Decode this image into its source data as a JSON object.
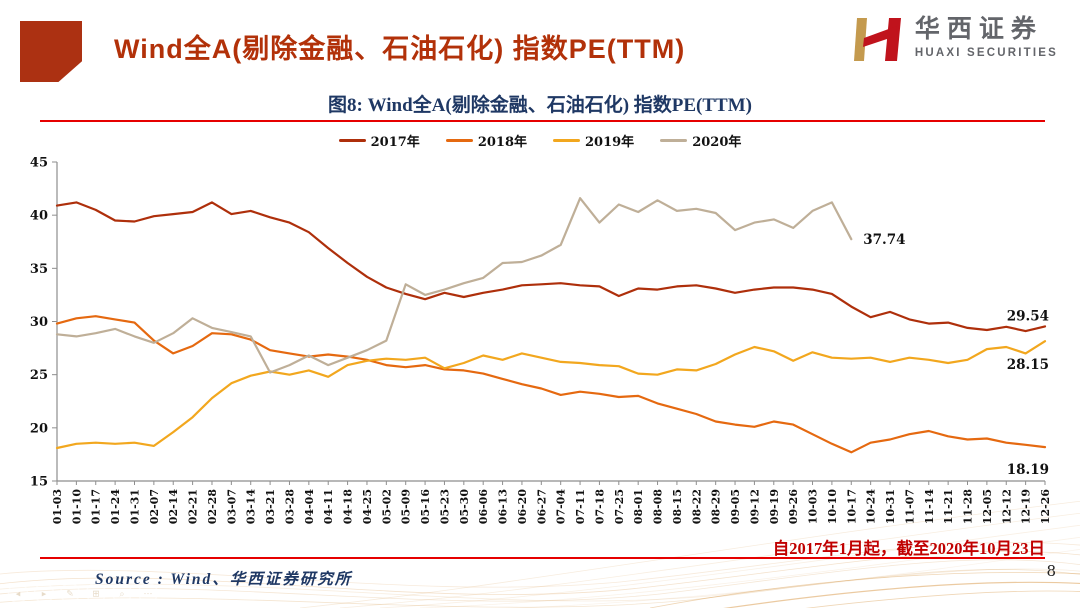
{
  "header": {
    "title": "Wind全A(剔除金融、石油石化) 指数PE(TTM)",
    "logo": {
      "cn": "华西证券",
      "en": "HUAXI SECURITIES"
    }
  },
  "figure": {
    "caption": "图8: Wind全A(剔除金融、石油石化) 指数PE(TTM)",
    "note": "自2017年1月起，截至2020年10月23日",
    "source": "Source : Wind、华西证券研究所",
    "page_number": "8"
  },
  "colors": {
    "brand_dark_red": "#B23109",
    "rule_red": "#E60000",
    "note_red": "#C00000",
    "caption_navy": "#1F3864",
    "axis_gray": "#8E8E8E"
  },
  "footer_ghost_toolbar": {
    "icons": [
      "back-icon",
      "play-icon",
      "pencil-icon",
      "print-icon",
      "search-icon",
      "more-icon"
    ],
    "glyphs": [
      "◂",
      "▸",
      "✎",
      "⊞",
      "⌕",
      "⋯"
    ]
  },
  "chart_data": {
    "type": "line",
    "title": "图8: Wind全A(剔除金融、石油石化) 指数PE(TTM)",
    "xlabel": "",
    "ylabel": "",
    "ylim": [
      15,
      45
    ],
    "yticks": [
      15,
      20,
      25,
      30,
      35,
      40,
      45
    ],
    "grid": false,
    "legend_position": "top",
    "x_labels": [
      "01-03",
      "01-10",
      "01-17",
      "01-24",
      "01-31",
      "02-07",
      "02-14",
      "02-21",
      "02-28",
      "03-07",
      "03-14",
      "03-21",
      "03-28",
      "04-04",
      "04-11",
      "04-18",
      "04-25",
      "05-02",
      "05-09",
      "05-16",
      "05-23",
      "05-30",
      "06-06",
      "06-13",
      "06-20",
      "06-27",
      "07-04",
      "07-11",
      "07-18",
      "07-25",
      "08-01",
      "08-08",
      "08-15",
      "08-22",
      "08-29",
      "09-05",
      "09-12",
      "09-19",
      "09-26",
      "10-03",
      "10-10",
      "10-17",
      "10-24",
      "10-31",
      "11-07",
      "11-14",
      "11-21",
      "11-28",
      "12-05",
      "12-12",
      "12-19",
      "12-26"
    ],
    "series": [
      {
        "name": "2017年",
        "color": "#AE2F0B",
        "end_label": "29.54",
        "label_anchor": "end",
        "label_offset": [
          4,
          -6
        ],
        "values": [
          40.9,
          41.2,
          40.5,
          39.5,
          39.4,
          39.9,
          40.1,
          40.3,
          41.2,
          40.1,
          40.4,
          39.8,
          39.3,
          38.4,
          36.9,
          35.5,
          34.2,
          33.2,
          32.6,
          32.1,
          32.7,
          32.3,
          32.7,
          33.0,
          33.4,
          33.5,
          33.6,
          33.4,
          33.3,
          32.4,
          33.1,
          33.0,
          33.3,
          33.4,
          33.1,
          32.7,
          33.0,
          33.2,
          33.2,
          33.0,
          32.6,
          31.4,
          30.4,
          30.9,
          30.2,
          29.8,
          29.9,
          29.4,
          29.2,
          29.5,
          29.1,
          29.54
        ]
      },
      {
        "name": "2018年",
        "color": "#E56910",
        "end_label": "18.19",
        "label_anchor": "end",
        "label_offset": [
          4,
          27
        ],
        "values": [
          29.8,
          30.3,
          30.5,
          30.2,
          29.9,
          28.2,
          27.0,
          27.7,
          28.9,
          28.8,
          28.3,
          27.3,
          27.0,
          26.7,
          26.9,
          26.7,
          26.4,
          25.9,
          25.7,
          25.9,
          25.5,
          25.4,
          25.1,
          24.6,
          24.1,
          23.7,
          23.1,
          23.4,
          23.2,
          22.9,
          23.0,
          22.3,
          21.8,
          21.3,
          20.6,
          20.3,
          20.1,
          20.6,
          20.3,
          19.4,
          18.5,
          17.7,
          18.6,
          18.9,
          19.4,
          19.7,
          19.2,
          18.9,
          19.0,
          18.6,
          18.4,
          18.19
        ]
      },
      {
        "name": "2019年",
        "color": "#F2A71E",
        "end_label": "28.15",
        "label_anchor": "end",
        "label_offset": [
          4,
          28
        ],
        "values": [
          18.1,
          18.5,
          18.6,
          18.5,
          18.6,
          18.3,
          19.6,
          21.0,
          22.8,
          24.2,
          24.9,
          25.3,
          25.0,
          25.4,
          24.8,
          25.9,
          26.3,
          26.5,
          26.4,
          26.6,
          25.6,
          26.1,
          26.8,
          26.4,
          27.0,
          26.6,
          26.2,
          26.1,
          25.9,
          25.8,
          25.1,
          25.0,
          25.5,
          25.4,
          26.0,
          26.9,
          27.6,
          27.2,
          26.3,
          27.1,
          26.6,
          26.5,
          26.6,
          26.2,
          26.6,
          26.4,
          26.1,
          26.4,
          27.4,
          27.6,
          27.0,
          28.15
        ]
      },
      {
        "name": "2020年",
        "color": "#BFAF98",
        "end_label": "37.74",
        "label_anchor": "start",
        "label_offset": [
          12,
          5
        ],
        "values": [
          28.8,
          28.6,
          28.9,
          29.3,
          28.6,
          28.0,
          28.9,
          30.3,
          29.4,
          29.0,
          28.6,
          25.2,
          25.9,
          26.8,
          25.9,
          26.6,
          27.3,
          28.2,
          33.5,
          32.5,
          33.0,
          33.6,
          34.1,
          35.5,
          35.6,
          36.2,
          37.2,
          41.6,
          39.3,
          41.0,
          40.3,
          41.4,
          40.4,
          40.6,
          40.2,
          38.6,
          39.3,
          39.6,
          38.8,
          40.4,
          41.2,
          37.74
        ]
      }
    ]
  }
}
